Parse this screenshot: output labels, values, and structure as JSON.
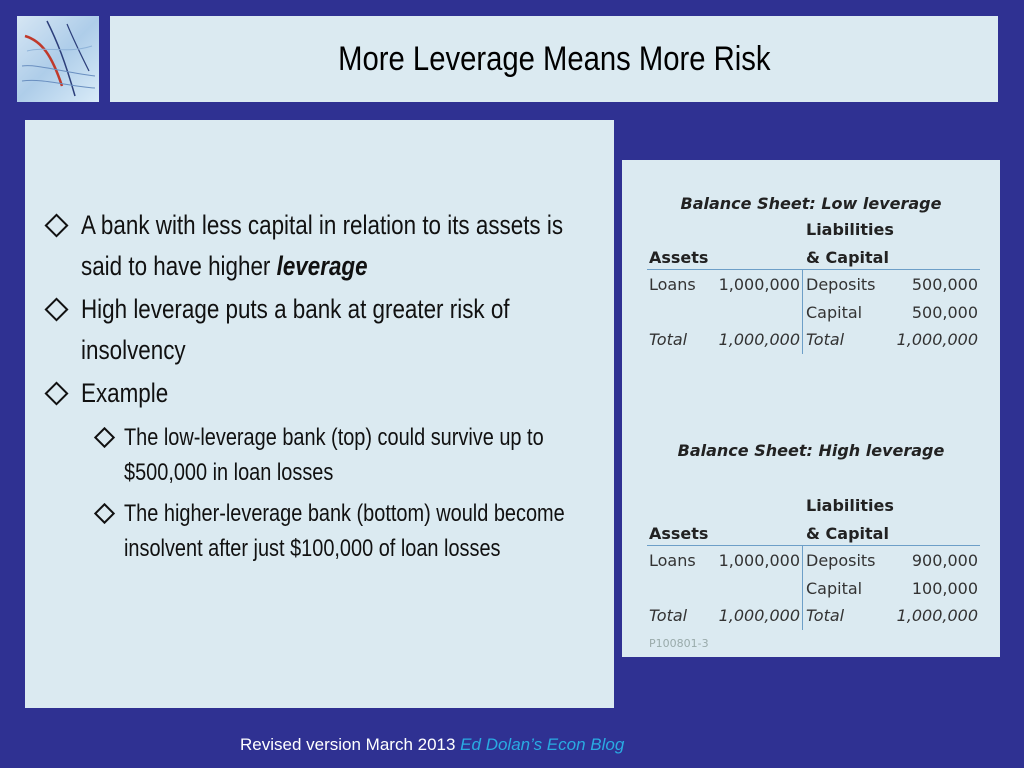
{
  "title": "More Leverage Means More Risk",
  "bullets": {
    "b1": "A bank with less capital in relation to its assets is said to have higher ",
    "b1_em": "leverage",
    "b2": "High leverage puts a bank at greater risk of insolvency",
    "b3": "Example",
    "sub1": "The low-leverage bank (top) could survive up to $500,000 in loan losses",
    "sub2": "The higher-leverage bank (bottom) would become insolvent after just $100,000 of loan losses"
  },
  "low": {
    "title": "Balance Sheet: Low leverage",
    "liab1": "Liabilities",
    "liab2": "& Capital",
    "assets": "Assets",
    "loans": "Loans",
    "loans_val": "1,000,000",
    "deposits": "Deposits",
    "deposits_val": "500,000",
    "capital": "Capital",
    "capital_val": "500,000",
    "total": "Total",
    "total_a": "1,000,000",
    "total_l": "1,000,000"
  },
  "high": {
    "title": "Balance Sheet: High leverage",
    "liab1": "Liabilities",
    "liab2": "& Capital",
    "assets": "Assets",
    "loans": "Loans",
    "loans_val": "1,000,000",
    "deposits": "Deposits",
    "deposits_val": "900,000",
    "capital": "Capital",
    "capital_val": "100,000",
    "total": "Total",
    "total_a": "1,000,000",
    "total_l": "1,000,000"
  },
  "code": "P100801-3",
  "footer": {
    "text": "Revised version March 2013 ",
    "blog": "Ed Dolan’s Econ Blog"
  },
  "colors": {
    "background": "#2f3192",
    "panel": "#dbeaf1",
    "footer_link": "#29abe2"
  }
}
